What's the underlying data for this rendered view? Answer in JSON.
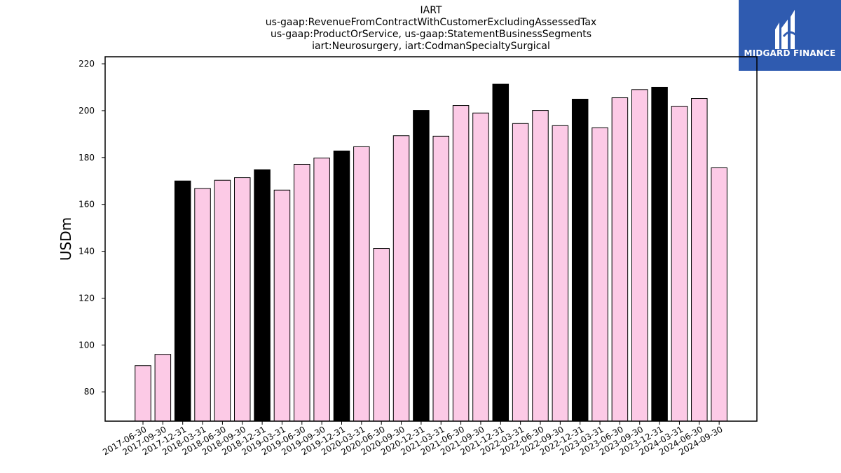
{
  "title_lines": [
    "IART",
    "us-gaap:RevenueFromContractWithCustomerExcludingAssessedTax",
    "us-gaap:ProductOrService, us-gaap:StatementBusinessSegments",
    "iart:Neurosurgery, iart:CodmanSpecialtySurgical"
  ],
  "logo": {
    "text": "MIDGARD FINANCE",
    "color": "#2f5bb0"
  },
  "chart_data": {
    "type": "bar",
    "title": "IART\nus-gaap:RevenueFromContractWithCustomerExcludingAssessedTax\nus-gaap:ProductOrService, us-gaap:StatementBusinessSegments\niart:Neurosurgery, iart:CodmanSpecialtySurgical",
    "xlabel": "",
    "ylabel": "USDm",
    "ylim": [
      67.5,
      223
    ],
    "yticks": [
      80,
      100,
      120,
      140,
      160,
      180,
      200,
      220
    ],
    "grid": false,
    "categories": [
      "2017-06-30",
      "2017-09-30",
      "2017-12-31",
      "2018-03-31",
      "2018-06-30",
      "2018-09-30",
      "2018-12-31",
      "2019-03-31",
      "2019-06-30",
      "2019-09-30",
      "2019-12-31",
      "2020-03-31",
      "2020-06-30",
      "2020-09-30",
      "2020-12-31",
      "2021-03-31",
      "2021-06-30",
      "2021-09-30",
      "2021-12-31",
      "2022-03-31",
      "2022-06-30",
      "2022-09-30",
      "2022-12-31",
      "2023-03-31",
      "2023-06-30",
      "2023-09-30",
      "2023-12-31",
      "2024-03-31",
      "2024-06-30",
      "2024-09-30"
    ],
    "values": [
      91.2,
      96.0,
      170.0,
      166.8,
      170.3,
      171.4,
      174.8,
      166.1,
      177.1,
      179.8,
      182.8,
      184.6,
      141.2,
      189.3,
      200.1,
      189.1,
      202.2,
      199.0,
      211.3,
      194.5,
      200.1,
      193.6,
      204.9,
      192.7,
      205.5,
      209.0,
      210.0,
      201.9,
      205.2,
      175.6
    ],
    "bar_colors": [
      "#fccae6",
      "#fccae6",
      "#000000",
      "#fccae6",
      "#fccae6",
      "#fccae6",
      "#000000",
      "#fccae6",
      "#fccae6",
      "#fccae6",
      "#000000",
      "#fccae6",
      "#fccae6",
      "#fccae6",
      "#000000",
      "#fccae6",
      "#fccae6",
      "#fccae6",
      "#000000",
      "#fccae6",
      "#fccae6",
      "#fccae6",
      "#000000",
      "#fccae6",
      "#fccae6",
      "#fccae6",
      "#000000",
      "#fccae6",
      "#fccae6",
      "#fccae6"
    ]
  }
}
